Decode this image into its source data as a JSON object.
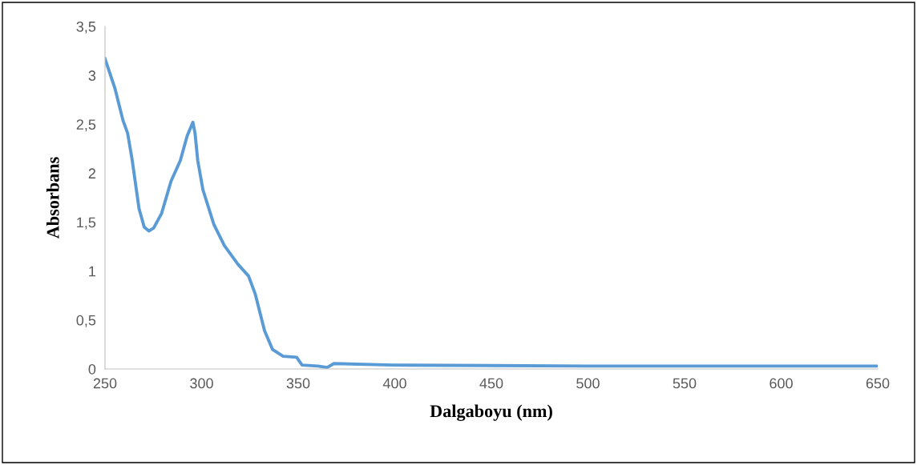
{
  "chart_data": {
    "type": "line",
    "xlabel": "Dalgaboyu (nm)",
    "ylabel": "Absorbans",
    "series": [
      {
        "color": "#5b9bd5",
        "x": [
          250,
          255.1,
          259.3,
          261.7,
          264.1,
          267.6,
          270.3,
          272.7,
          275.2,
          279.3,
          284.2,
          289,
          292.5,
          295.5,
          296.6,
          298,
          300.7,
          306.3,
          311.8,
          318.8,
          324.3,
          327.7,
          332.6,
          336.7,
          342.2,
          349.2,
          352,
          360.2,
          365,
          368.5,
          399,
          450,
          500,
          550,
          600,
          650
        ],
        "values": [
          3.17,
          2.87,
          2.54,
          2.41,
          2.13,
          1.64,
          1.45,
          1.41,
          1.44,
          1.59,
          1.92,
          2.13,
          2.38,
          2.52,
          2.41,
          2.13,
          1.83,
          1.48,
          1.26,
          1.07,
          0.95,
          0.77,
          0.39,
          0.2,
          0.13,
          0.12,
          0.04,
          0.03,
          0.015,
          0.055,
          0.04,
          0.035,
          0.03,
          0.03,
          0.03,
          0.03
        ]
      }
    ],
    "xlim": [
      250,
      650
    ],
    "xticks": [
      250,
      300,
      350,
      400,
      450,
      500,
      550,
      600,
      650
    ],
    "ylim": [
      0,
      3.5
    ],
    "yticks": [
      0,
      {
        "value": 0.5,
        "label": "0,5"
      },
      1,
      {
        "value": 1.5,
        "label": "1,5"
      },
      2,
      {
        "value": 2.5,
        "label": "2,5"
      },
      3,
      {
        "value": 3.5,
        "label": "3,5"
      }
    ],
    "grid": false,
    "legend": false,
    "marker": "none",
    "line_style": "solid"
  }
}
